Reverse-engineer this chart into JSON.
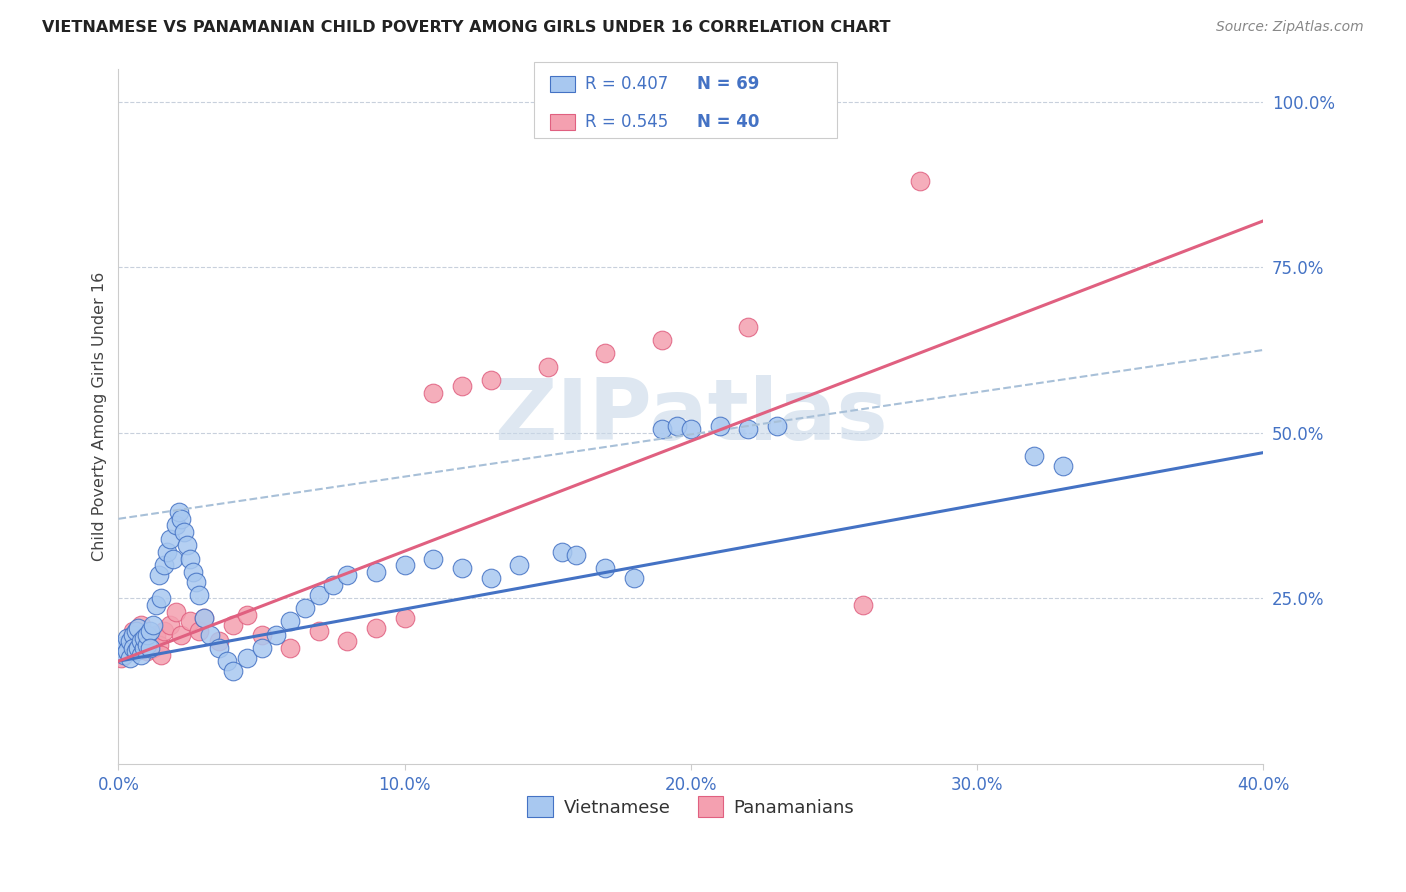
{
  "title": "VIETNAMESE VS PANAMANIAN CHILD POVERTY AMONG GIRLS UNDER 16 CORRELATION CHART",
  "source": "Source: ZipAtlas.com",
  "ylabel": "Child Poverty Among Girls Under 16",
  "xlim": [
    0.0,
    0.4
  ],
  "ylim": [
    0.0,
    1.05
  ],
  "xtick_vals": [
    0.0,
    0.1,
    0.2,
    0.3,
    0.4
  ],
  "xtick_labels": [
    "0.0%",
    "10.0%",
    "20.0%",
    "30.0%",
    "40.0%"
  ],
  "ytick_vals": [
    0.25,
    0.5,
    0.75,
    1.0
  ],
  "ytick_labels": [
    "25.0%",
    "50.0%",
    "75.0%",
    "100.0%"
  ],
  "blue_fill": "#A8C8F0",
  "blue_edge": "#4472C4",
  "pink_fill": "#F4A0B0",
  "pink_edge": "#E06080",
  "trend_blue_color": "#4472C4",
  "trend_pink_color": "#E06080",
  "dashed_color": "#A8C0D8",
  "grid_color": "#C8D0DC",
  "axis_color": "#CCCCCC",
  "tick_label_color": "#4472C4",
  "title_color": "#222222",
  "source_color": "#888888",
  "ylabel_color": "#444444",
  "watermark": "ZIPatlas",
  "watermark_color": "#C8D8E8",
  "legend_label_color": "#4472C4",
  "blue_trendline": [
    0.0,
    0.4,
    0.155,
    0.47
  ],
  "pink_trendline": [
    0.0,
    0.4,
    0.155,
    0.82
  ],
  "dashed_trendline": [
    0.0,
    0.4,
    0.37,
    0.625
  ],
  "viet_x": [
    0.001,
    0.002,
    0.002,
    0.003,
    0.003,
    0.004,
    0.004,
    0.005,
    0.005,
    0.006,
    0.006,
    0.007,
    0.007,
    0.008,
    0.008,
    0.009,
    0.009,
    0.01,
    0.01,
    0.011,
    0.011,
    0.012,
    0.013,
    0.014,
    0.015,
    0.016,
    0.017,
    0.018,
    0.019,
    0.02,
    0.021,
    0.022,
    0.023,
    0.024,
    0.025,
    0.026,
    0.027,
    0.028,
    0.03,
    0.032,
    0.035,
    0.038,
    0.04,
    0.045,
    0.05,
    0.055,
    0.06,
    0.065,
    0.07,
    0.075,
    0.08,
    0.09,
    0.1,
    0.11,
    0.12,
    0.13,
    0.14,
    0.155,
    0.16,
    0.17,
    0.18,
    0.19,
    0.195,
    0.2,
    0.21,
    0.22,
    0.23,
    0.32,
    0.33
  ],
  "viet_y": [
    0.175,
    0.18,
    0.165,
    0.19,
    0.17,
    0.185,
    0.16,
    0.195,
    0.175,
    0.2,
    0.17,
    0.205,
    0.175,
    0.165,
    0.185,
    0.175,
    0.19,
    0.18,
    0.195,
    0.2,
    0.175,
    0.21,
    0.24,
    0.285,
    0.25,
    0.3,
    0.32,
    0.34,
    0.31,
    0.36,
    0.38,
    0.37,
    0.35,
    0.33,
    0.31,
    0.29,
    0.275,
    0.255,
    0.22,
    0.195,
    0.175,
    0.155,
    0.14,
    0.16,
    0.175,
    0.195,
    0.215,
    0.235,
    0.255,
    0.27,
    0.285,
    0.29,
    0.3,
    0.31,
    0.295,
    0.28,
    0.3,
    0.32,
    0.315,
    0.295,
    0.28,
    0.505,
    0.51,
    0.505,
    0.51,
    0.505,
    0.51,
    0.465,
    0.45
  ],
  "pan_x": [
    0.001,
    0.002,
    0.003,
    0.004,
    0.005,
    0.006,
    0.007,
    0.008,
    0.009,
    0.01,
    0.011,
    0.012,
    0.013,
    0.014,
    0.015,
    0.016,
    0.018,
    0.02,
    0.022,
    0.025,
    0.028,
    0.03,
    0.035,
    0.04,
    0.045,
    0.05,
    0.06,
    0.07,
    0.08,
    0.09,
    0.1,
    0.11,
    0.12,
    0.13,
    0.15,
    0.17,
    0.19,
    0.22,
    0.26,
    0.28
  ],
  "pan_y": [
    0.16,
    0.175,
    0.17,
    0.185,
    0.2,
    0.18,
    0.195,
    0.21,
    0.19,
    0.17,
    0.185,
    0.175,
    0.195,
    0.18,
    0.165,
    0.2,
    0.21,
    0.23,
    0.195,
    0.215,
    0.2,
    0.22,
    0.185,
    0.21,
    0.225,
    0.195,
    0.175,
    0.2,
    0.185,
    0.205,
    0.22,
    0.56,
    0.57,
    0.58,
    0.6,
    0.62,
    0.64,
    0.66,
    0.24,
    0.88
  ]
}
